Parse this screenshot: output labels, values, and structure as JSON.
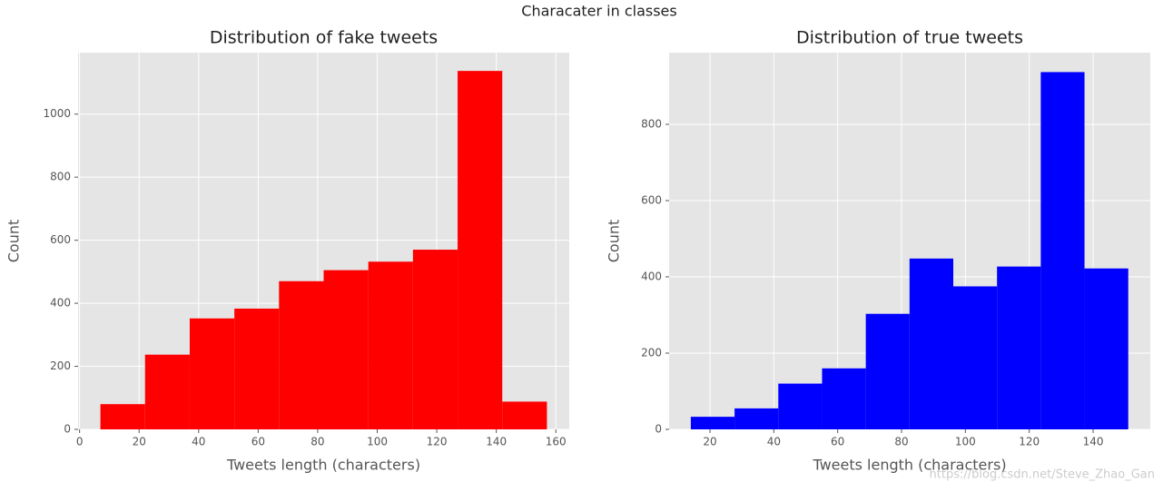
{
  "title": "Characater in classes",
  "watermark": "https://blog.csdn.net/Steve_Zhao_Gan",
  "chart_data": [
    {
      "type": "histogram",
      "title": "Distribution of fake tweets",
      "x_label": "Tweets length (characters)",
      "y_label": "Count",
      "color": "#ff0000",
      "bins": [
        7,
        22,
        37,
        52,
        67,
        82,
        97,
        112,
        127,
        142,
        157
      ],
      "values": [
        80,
        237,
        352,
        383,
        470,
        505,
        532,
        570,
        1137,
        88
      ],
      "xlim": [
        -0.5,
        164.5
      ],
      "ylim": [
        0,
        1195
      ],
      "xticks": [
        0,
        20,
        40,
        60,
        80,
        100,
        120,
        140,
        160
      ],
      "yticks": [
        0,
        200,
        400,
        600,
        800,
        1000
      ],
      "grid": true
    },
    {
      "type": "histogram",
      "title": "Distribution of true tweets",
      "x_label": "Tweets length (characters)",
      "y_label": "Count",
      "color": "#0000ff",
      "bins": [
        14,
        27.7,
        41.4,
        55.1,
        68.8,
        82.5,
        96.2,
        109.9,
        123.6,
        137.3,
        151
      ],
      "values": [
        33,
        55,
        120,
        160,
        303,
        448,
        375,
        427,
        937,
        422
      ],
      "xlim": [
        7.2,
        157.9
      ],
      "ylim": [
        0,
        988
      ],
      "xticks": [
        20,
        40,
        60,
        80,
        100,
        120,
        140
      ],
      "yticks": [
        0,
        200,
        400,
        600,
        800
      ],
      "grid": true
    }
  ]
}
